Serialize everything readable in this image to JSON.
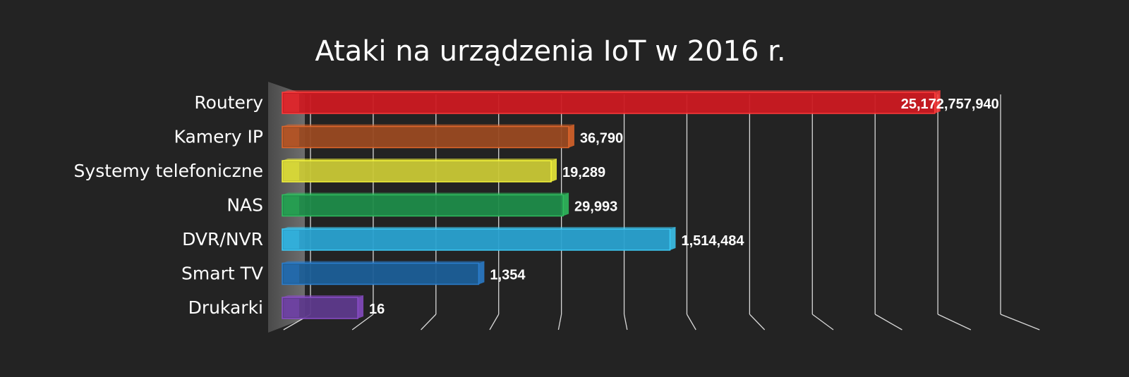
{
  "chart_data": {
    "type": "bar",
    "orientation": "horizontal",
    "title": "Ataki na urządzenia IoT w 2016 r.",
    "categories": [
      "Routery",
      "Kamery IP",
      "Systemy telefoniczne",
      "NAS",
      "DVR/NVR",
      "Smart TV",
      "Drukarki"
    ],
    "values": [
      25172757940,
      36790,
      19289,
      29993,
      1514484,
      1354,
      16
    ],
    "value_labels": [
      "25,172,757,940",
      "36,790",
      "19,289",
      "29,993",
      "1,514,484",
      "1,354",
      "16"
    ],
    "colors": [
      "#cc1a22",
      "#9a4a22",
      "#c9c836",
      "#1f8c4a",
      "#2aa2d0",
      "#1c5f98",
      "#5e3a8c"
    ],
    "edge_colors": [
      "#ff3b3b",
      "#e0662a",
      "#f5f53a",
      "#2fbf5f",
      "#3ccaf5",
      "#2a7fd0",
      "#8a4cc8"
    ],
    "scale": "log",
    "xlim": [
      1,
      100000000000
    ],
    "grid": true,
    "legend": "none"
  }
}
